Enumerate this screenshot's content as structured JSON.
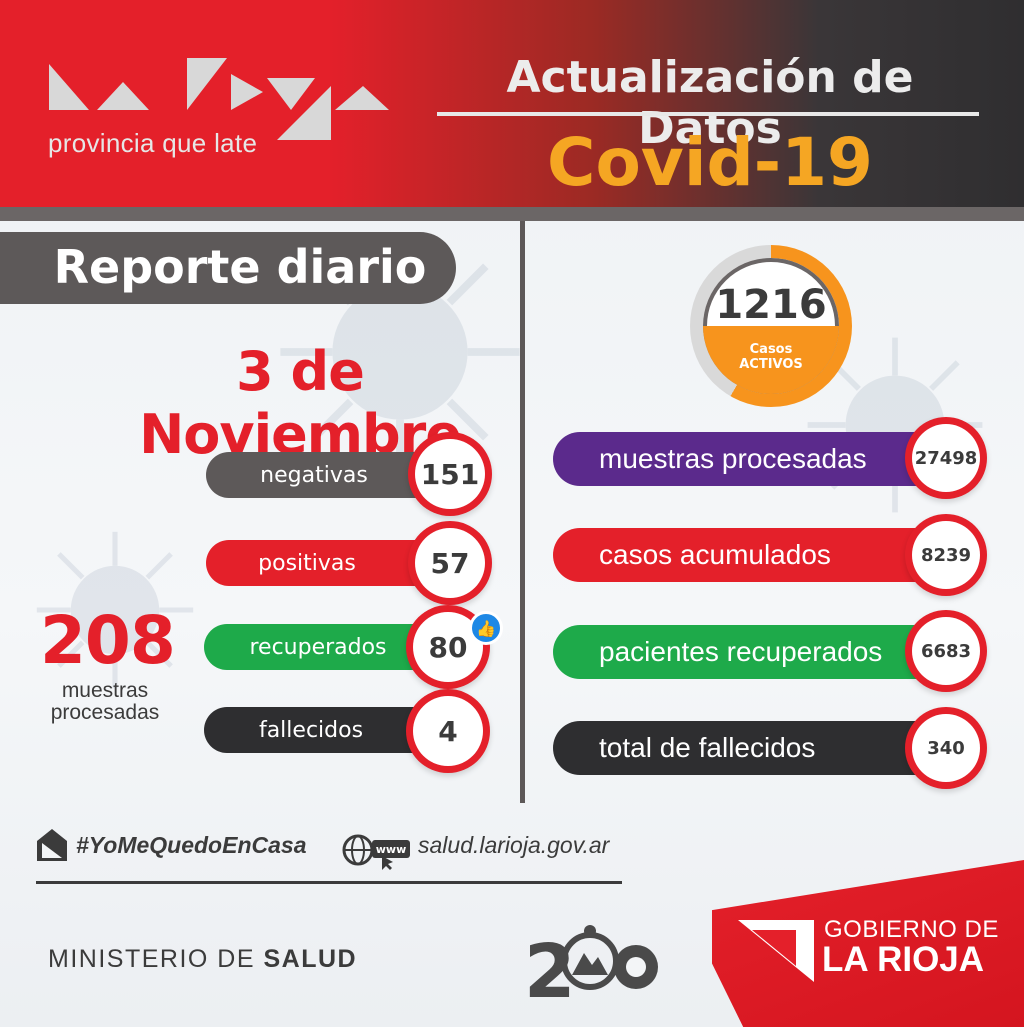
{
  "header": {
    "logo_subtitle": "provincia que late",
    "title": "Actualización de Datos",
    "subtitle": "Covid-19"
  },
  "report": {
    "banner": "Reporte diario",
    "date": "3 de Noviembre"
  },
  "daily": [
    {
      "label": "negativas",
      "value": "151"
    },
    {
      "label": "positivas",
      "value": "57"
    },
    {
      "label": "recuperados",
      "value": "80"
    },
    {
      "label": "fallecidos",
      "value": "4"
    }
  ],
  "daily_total": {
    "value": "208",
    "label": "muestras procesadas"
  },
  "active": {
    "value": "1216",
    "label_line1": "Casos",
    "label_line2": "ACTIVOS"
  },
  "cumulative": [
    {
      "label": "muestras procesadas",
      "value": "27498"
    },
    {
      "label": "casos acumulados",
      "value": "8239"
    },
    {
      "label": "pacientes recuperados",
      "value": "6683"
    },
    {
      "label": "total de fallecidos",
      "value": "340"
    }
  ],
  "footer": {
    "hashtag": "#YoMeQuedoEnCasa",
    "www_label": "www",
    "website": "salud.larioja.gov.ar",
    "ministry_prefix": "MINISTERIO DE",
    "ministry_bold": "SALUD",
    "emblem_text": "200",
    "gov_line1": "GOBIERNO DE",
    "gov_line2": "LA RIOJA"
  },
  "colors": {
    "red": "#e4202a",
    "orange": "#f7941d",
    "green": "#1eaa4a",
    "purple": "#5b2a8c",
    "dark_gray": "#5d5959",
    "black": "#2e2e30"
  },
  "icons": [
    "house-hashtag-icon",
    "globe-www-icon",
    "thumbs-up-icon",
    "gobierno-logo-icon",
    "virus-icon"
  ]
}
